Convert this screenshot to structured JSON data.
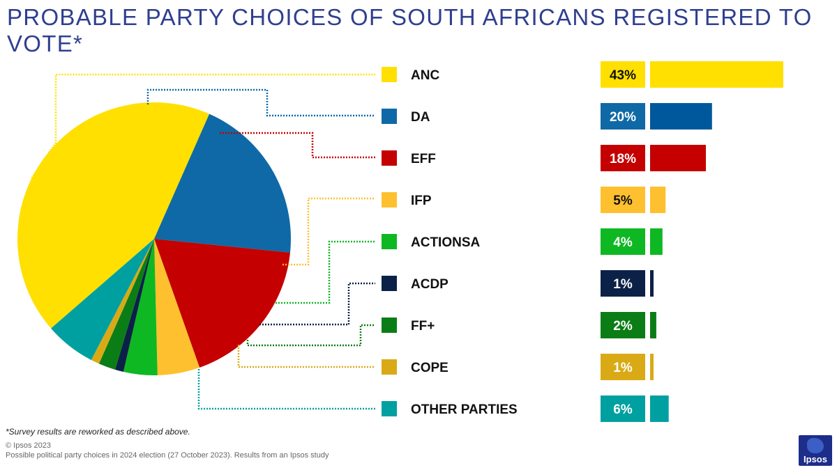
{
  "title": "PROBABLE PARTY CHOICES OF SOUTH AFRICANS REGISTERED TO VOTE*",
  "footnote": "*Survey results are reworked as described above.",
  "copyright": "© Ipsos 2023",
  "source": "Possible political party choices in 2024 election (27 October 2023). Results from an Ipsos study",
  "logo_text": "Ipsos",
  "chart_data": {
    "type": "pie",
    "title": "PROBABLE PARTY CHOICES OF SOUTH AFRICANS REGISTERED TO VOTE*",
    "categories": [
      "ANC",
      "DA",
      "EFF",
      "IFP",
      "ACTIONSA",
      "ACDP",
      "FF+",
      "COPE",
      "OTHER PARTIES"
    ],
    "values": [
      43,
      20,
      18,
      5,
      4,
      1,
      2,
      1,
      6
    ],
    "value_labels": [
      "43%",
      "20%",
      "18%",
      "5%",
      "4%",
      "1%",
      "2%",
      "1%",
      "6%"
    ],
    "colors": [
      "#ffe000",
      "#0f69a6",
      "#c40000",
      "#fec02e",
      "#0eb822",
      "#0c2147",
      "#0b7d16",
      "#d9aa16",
      "#00a0a0"
    ],
    "label_colors": [
      "#111111",
      "#ffffff",
      "#ffffff",
      "#111111",
      "#ffffff",
      "#ffffff",
      "#ffffff",
      "#ffffff",
      "#ffffff"
    ],
    "bar_colors": [
      "#ffe000",
      "#00589c",
      "#c40000",
      "#fec02e",
      "#0eb822",
      "#0c2147",
      "#0b7d16",
      "#d9aa16",
      "#00a0a0"
    ],
    "legend": "right"
  }
}
